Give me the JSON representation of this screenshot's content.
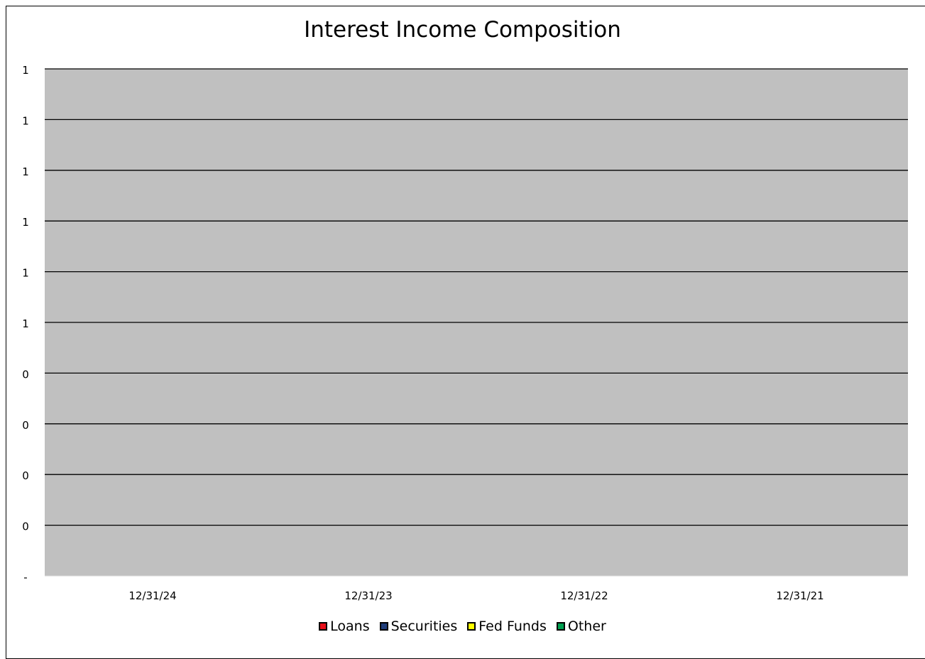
{
  "chart_data": {
    "type": "bar",
    "title": "Interest Income Composition",
    "categories": [
      "12/31/24",
      "12/31/23",
      "12/31/22",
      "12/31/21"
    ],
    "y_tick_labels": [
      "-",
      "0",
      "0",
      "0",
      "0",
      "1",
      "1",
      "1",
      "1",
      "1",
      "1"
    ],
    "ylim": [
      0,
      1
    ],
    "grid": true,
    "legend_position": "bottom",
    "series": [
      {
        "name": "Loans",
        "color": "#e8101b",
        "values": [
          0,
          0,
          0,
          0
        ]
      },
      {
        "name": "Securities",
        "color": "#1f3d7a",
        "values": [
          0,
          0,
          0,
          0
        ]
      },
      {
        "name": "Fed Funds",
        "color": "#ffff00",
        "values": [
          0,
          0,
          0,
          0
        ]
      },
      {
        "name": "Other",
        "color": "#00a050",
        "values": [
          0,
          0,
          0,
          0
        ]
      }
    ],
    "plot_background": "#c0c0c0"
  }
}
